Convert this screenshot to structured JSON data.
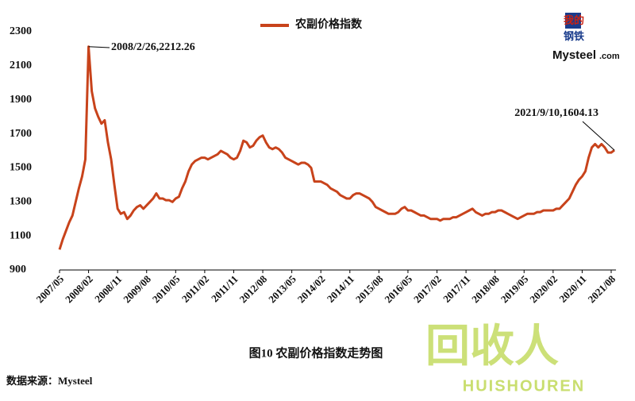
{
  "chart_data": {
    "type": "line",
    "caption": "图10 农副价格指数走势图",
    "source": "数据来源：Mysteel",
    "logo": {
      "top": "我的",
      "middle": "钢铁",
      "brand": "Mysteel",
      "suffix": ".com"
    },
    "watermark": {
      "mark": "回收人",
      "text": "HUISHOUREN"
    },
    "categories": [
      "2007/05",
      null,
      null,
      null,
      null,
      null,
      null,
      null,
      null,
      "2008/02",
      null,
      null,
      null,
      null,
      null,
      null,
      null,
      null,
      "2008/11",
      null,
      null,
      null,
      null,
      null,
      null,
      null,
      null,
      "2009/08",
      null,
      null,
      null,
      null,
      null,
      null,
      null,
      null,
      "2010/05",
      null,
      null,
      null,
      null,
      null,
      null,
      null,
      null,
      "2011/02",
      null,
      null,
      null,
      null,
      null,
      null,
      null,
      null,
      "2011/11",
      null,
      null,
      null,
      null,
      null,
      null,
      null,
      null,
      "2012/08",
      null,
      null,
      null,
      null,
      null,
      null,
      null,
      null,
      "2013/05",
      null,
      null,
      null,
      null,
      null,
      null,
      null,
      null,
      "2014/02",
      null,
      null,
      null,
      null,
      null,
      null,
      null,
      null,
      "2014/11",
      null,
      null,
      null,
      null,
      null,
      null,
      null,
      null,
      "2015/08",
      null,
      null,
      null,
      null,
      null,
      null,
      null,
      null,
      "2016/05",
      null,
      null,
      null,
      null,
      null,
      null,
      null,
      null,
      "2017/02",
      null,
      null,
      null,
      null,
      null,
      null,
      null,
      null,
      "2017/11",
      null,
      null,
      null,
      null,
      null,
      null,
      null,
      null,
      "2018/08",
      null,
      null,
      null,
      null,
      null,
      null,
      null,
      null,
      "2019/05",
      null,
      null,
      null,
      null,
      null,
      null,
      null,
      null,
      "2020/02",
      null,
      null,
      null,
      null,
      null,
      null,
      null,
      null,
      "2020/11",
      null,
      null,
      null,
      null,
      null,
      null,
      null,
      null,
      "2021/08",
      null
    ],
    "series": [
      {
        "name": "农副价格指数",
        "color": "#c8431b",
        "values": [
          1020,
          1080,
          1130,
          1180,
          1220,
          1300,
          1380,
          1450,
          1550,
          2212.26,
          1950,
          1850,
          1800,
          1760,
          1780,
          1650,
          1550,
          1400,
          1260,
          1230,
          1240,
          1200,
          1220,
          1250,
          1270,
          1280,
          1260,
          1280,
          1300,
          1320,
          1350,
          1320,
          1320,
          1310,
          1310,
          1300,
          1320,
          1330,
          1380,
          1420,
          1480,
          1520,
          1540,
          1550,
          1560,
          1560,
          1550,
          1560,
          1570,
          1580,
          1600,
          1590,
          1580,
          1560,
          1550,
          1560,
          1600,
          1660,
          1650,
          1620,
          1630,
          1660,
          1680,
          1690,
          1650,
          1620,
          1610,
          1620,
          1610,
          1590,
          1560,
          1550,
          1540,
          1530,
          1520,
          1530,
          1530,
          1520,
          1500,
          1420,
          1420,
          1420,
          1410,
          1400,
          1380,
          1370,
          1360,
          1340,
          1330,
          1320,
          1320,
          1340,
          1350,
          1350,
          1340,
          1330,
          1320,
          1300,
          1270,
          1260,
          1250,
          1240,
          1230,
          1230,
          1230,
          1240,
          1260,
          1270,
          1250,
          1250,
          1240,
          1230,
          1220,
          1220,
          1210,
          1200,
          1200,
          1200,
          1190,
          1200,
          1200,
          1200,
          1210,
          1210,
          1220,
          1230,
          1240,
          1250,
          1260,
          1240,
          1230,
          1220,
          1230,
          1230,
          1240,
          1240,
          1250,
          1250,
          1240,
          1230,
          1220,
          1210,
          1200,
          1210,
          1220,
          1230,
          1230,
          1230,
          1240,
          1240,
          1250,
          1250,
          1250,
          1250,
          1260,
          1260,
          1280,
          1300,
          1320,
          1360,
          1400,
          1430,
          1450,
          1480,
          1560,
          1620,
          1640,
          1620,
          1640,
          1620,
          1590,
          1590,
          1604.13
        ]
      }
    ],
    "annotations": [
      {
        "text": "2008/2/26,2212.26",
        "value": 2212.26
      },
      {
        "text": "2021/9/10,1604.13",
        "value": 1604.13
      }
    ],
    "ylim": [
      900,
      2300
    ],
    "yticks": [
      900,
      1100,
      1300,
      1500,
      1700,
      1900,
      2100,
      2300
    ],
    "grid": false
  }
}
